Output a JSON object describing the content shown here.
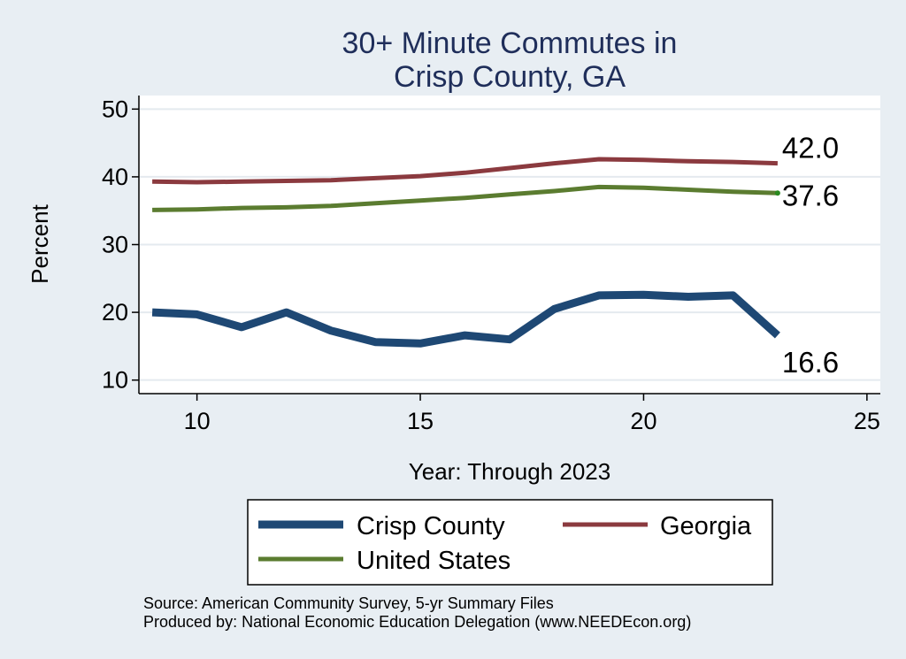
{
  "chart_data": {
    "type": "line",
    "title_lines": [
      "30+ Minute Commutes in",
      "Crisp County, GA"
    ],
    "xlabel": "Year: Through 2023",
    "ylabel": "Percent",
    "xlim": [
      8.7,
      25.3
    ],
    "ylim": [
      8,
      52
    ],
    "x_ticks": [
      10,
      15,
      20,
      25
    ],
    "y_ticks": [
      10,
      20,
      30,
      40,
      50
    ],
    "grid": true,
    "series": [
      {
        "name": "Georgia",
        "color": "#8b3a3f",
        "x": [
          9,
          10,
          11,
          12,
          13,
          14,
          15,
          16,
          17,
          18,
          19,
          20,
          21,
          22,
          23
        ],
        "values": [
          39.3,
          39.2,
          39.3,
          39.4,
          39.5,
          39.8,
          40.1,
          40.6,
          41.3,
          42.0,
          42.6,
          42.5,
          42.3,
          42.2,
          42.0
        ],
        "end_label": "42.0"
      },
      {
        "name": "United States",
        "color": "#5b7c30",
        "x": [
          9,
          10,
          11,
          12,
          13,
          14,
          15,
          16,
          17,
          18,
          19,
          20,
          21,
          22,
          23
        ],
        "values": [
          35.1,
          35.2,
          35.4,
          35.5,
          35.7,
          36.1,
          36.5,
          36.9,
          37.4,
          37.9,
          38.5,
          38.4,
          38.1,
          37.8,
          37.6
        ],
        "end_label": "37.6"
      },
      {
        "name": "Crisp County",
        "color": "#1e4874",
        "x": [
          9,
          10,
          11,
          12,
          13,
          14,
          15,
          16,
          17,
          18,
          19,
          20,
          21,
          22,
          23
        ],
        "values": [
          20.0,
          19.7,
          17.8,
          20.0,
          17.3,
          15.6,
          15.4,
          16.6,
          16.0,
          20.5,
          22.5,
          22.6,
          22.3,
          22.5,
          16.6
        ],
        "end_label": "16.6"
      }
    ],
    "legend": {
      "placement": "bottom",
      "entries": [
        "Crisp County",
        "Georgia",
        "United States"
      ]
    },
    "notes": [
      "Source: American Community Survey, 5-yr Summary Files",
      "Produced by: National Economic Education Delegation (www.NEEDEcon.org)"
    ]
  }
}
